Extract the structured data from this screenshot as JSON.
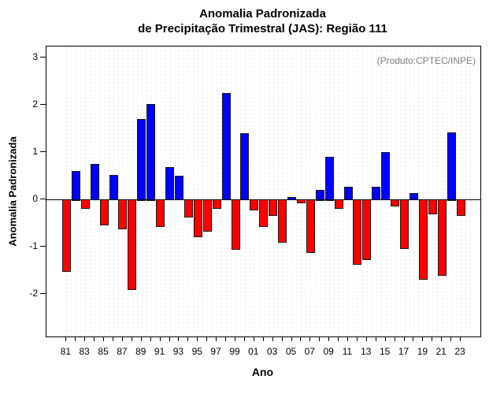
{
  "page": {
    "background": "#ffffff"
  },
  "chart_data": {
    "type": "bar",
    "title": "Anomalia Padronizada",
    "subtitle": "de Precipitação Trimestral (JAS): Região 111",
    "annotation": "(Produto:CPTEC/INPE)",
    "xlabel": "Ano",
    "ylabel": "Anomalia Padronizada",
    "ylim": [
      -2.9,
      3.25
    ],
    "yticks": [
      -2,
      -1,
      0,
      1,
      2,
      3
    ],
    "xtick_visible_labels": [
      "81",
      "83",
      "85",
      "87",
      "89",
      "91",
      "93",
      "95",
      "97",
      "99",
      "01",
      "03",
      "05",
      "07",
      "09",
      "11",
      "13",
      "15",
      "17",
      "19",
      "21",
      "23"
    ],
    "grid": "vertical-dashed",
    "legend": "none",
    "years": [
      1981,
      1982,
      1983,
      1984,
      1985,
      1986,
      1987,
      1988,
      1989,
      1990,
      1991,
      1992,
      1993,
      1994,
      1995,
      1996,
      1997,
      1998,
      1999,
      2000,
      2001,
      2002,
      2003,
      2004,
      2005,
      2006,
      2007,
      2008,
      2009,
      2010,
      2011,
      2012,
      2013,
      2014,
      2015,
      2016,
      2017,
      2018,
      2019,
      2020,
      2021,
      2022,
      2023
    ],
    "values": [
      -1.52,
      0.61,
      -0.18,
      0.75,
      -0.54,
      0.52,
      -0.61,
      -1.9,
      1.71,
      2.03,
      -0.57,
      0.69,
      0.5,
      -0.37,
      -0.79,
      -0.66,
      -0.18,
      2.25,
      -1.05,
      1.4,
      -0.22,
      -0.57,
      -0.33,
      -0.9,
      0.05,
      -0.07,
      -1.12,
      0.21,
      0.91,
      -0.19,
      0.27,
      -1.36,
      -1.26,
      0.27,
      1.0,
      -0.13,
      -1.04,
      0.14,
      -1.68,
      -0.3,
      -1.6,
      1.43,
      -0.33
    ],
    "colors": {
      "positive_bar": "#0000ff",
      "negative_bar": "#ff0000",
      "bar_border": "#1a1a1a",
      "axis": "#000000",
      "grid_line": "#e8e8e8",
      "annotation_text": "#7f7f7f"
    }
  }
}
